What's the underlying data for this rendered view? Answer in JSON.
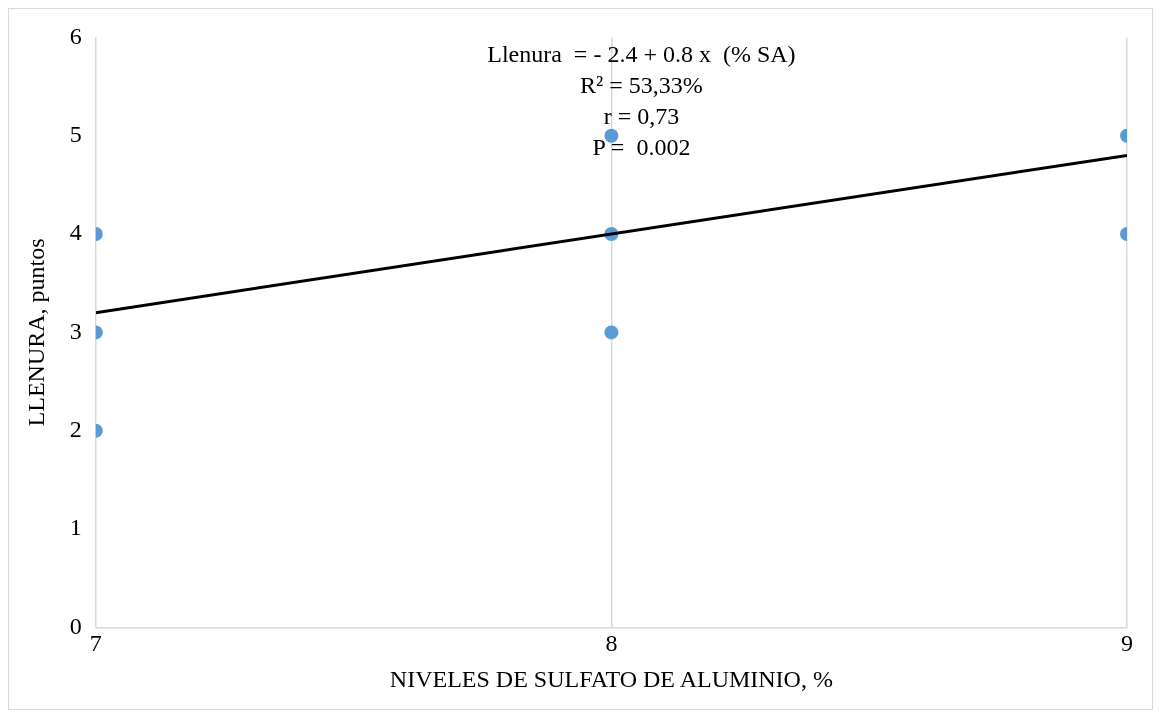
{
  "chart_data": {
    "type": "scatter",
    "xlabel": "NIVELES DE SULFATO DE ALUMINIO, %",
    "ylabel": "LLENURA, puntos",
    "annotations": [
      "Llenura  = - 2.4 + 0.8 x  (% SA)",
      "R² = 53,33%",
      "r = 0,73",
      "P =  0.002"
    ],
    "series": [
      {
        "type": "scatter",
        "color": "#5b9bd5",
        "x": [
          7,
          7,
          7,
          8,
          8,
          8,
          9,
          9
        ],
        "values": [
          4,
          3,
          2,
          5,
          4,
          3,
          5,
          4
        ],
        "marker": "circle"
      },
      {
        "type": "line",
        "color": "#000000",
        "x": [
          7,
          9
        ],
        "values": [
          3.2,
          4.8
        ],
        "marker": "none",
        "line_style": "solid"
      }
    ],
    "xlim": [
      7,
      9
    ],
    "xticks": [
      7,
      8,
      9
    ],
    "ylim": [
      0,
      6
    ],
    "yticks": [
      0,
      1,
      2,
      3,
      4,
      5,
      6
    ],
    "grid": "x",
    "legend": false
  }
}
